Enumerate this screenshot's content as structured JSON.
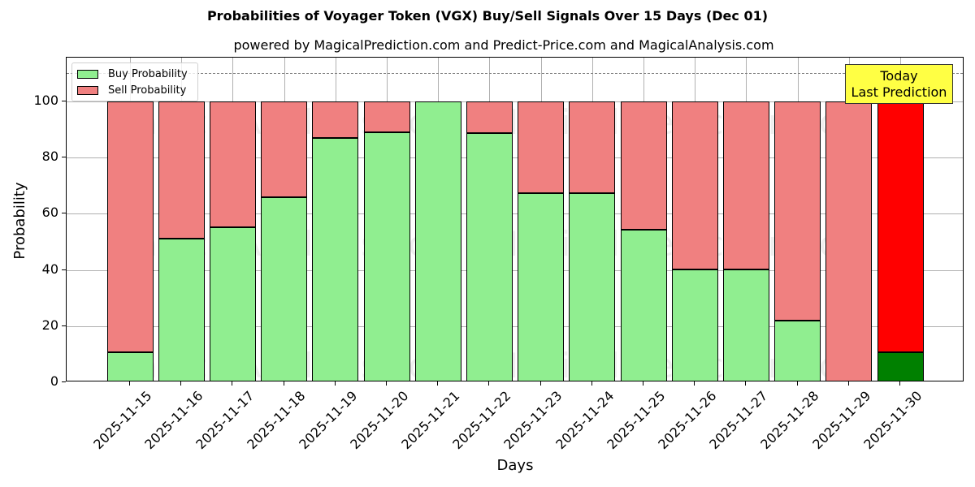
{
  "chart_data": {
    "type": "bar",
    "stacked": true,
    "title": "Probabilities of Voyager Token (VGX) Buy/Sell Signals Over 15 Days (Dec 01)",
    "subtitle": "powered by MagicalPrediction.com and Predict-Price.com and MagicalAnalysis.com",
    "xlabel": "Days",
    "ylabel": "Probability",
    "ylim": [
      0,
      115
    ],
    "yticks": [
      0,
      20,
      40,
      60,
      80,
      100
    ],
    "grid": true,
    "legend_position": "upper left",
    "categories": [
      "2025-11-15",
      "2025-11-16",
      "2025-11-17",
      "2025-11-18",
      "2025-11-19",
      "2025-11-20",
      "2025-11-21",
      "2025-11-22",
      "2025-11-23",
      "2025-11-24",
      "2025-11-25",
      "2025-11-26",
      "2025-11-27",
      "2025-11-28",
      "2025-11-29",
      "2025-11-30"
    ],
    "series": [
      {
        "name": "Buy Probability",
        "color": "#90ee90",
        "values": [
          10.7,
          51.2,
          55.3,
          66.0,
          87.1,
          89.1,
          100.0,
          88.6,
          67.3,
          67.3,
          54.3,
          40.3,
          40.3,
          21.9,
          0.0,
          10.6
        ]
      },
      {
        "name": "Sell Probability",
        "color": "#f08080",
        "values": [
          89.3,
          48.8,
          44.7,
          34.0,
          12.9,
          10.9,
          0.0,
          11.4,
          32.7,
          32.7,
          45.7,
          59.7,
          59.7,
          78.1,
          100.0,
          89.4
        ]
      }
    ],
    "highlight": {
      "index": 15,
      "buy_color": "#008000",
      "sell_color": "#ff0000"
    },
    "reference_line": {
      "y": 110,
      "style": "dashed",
      "color": "#808080"
    },
    "annotation": {
      "text_line1": "Today",
      "text_line2": "Last Prediction",
      "background": "#ffff44"
    },
    "watermarks": [
      "MagicalAnalysis.com",
      "MagicalPrediction.com"
    ]
  }
}
